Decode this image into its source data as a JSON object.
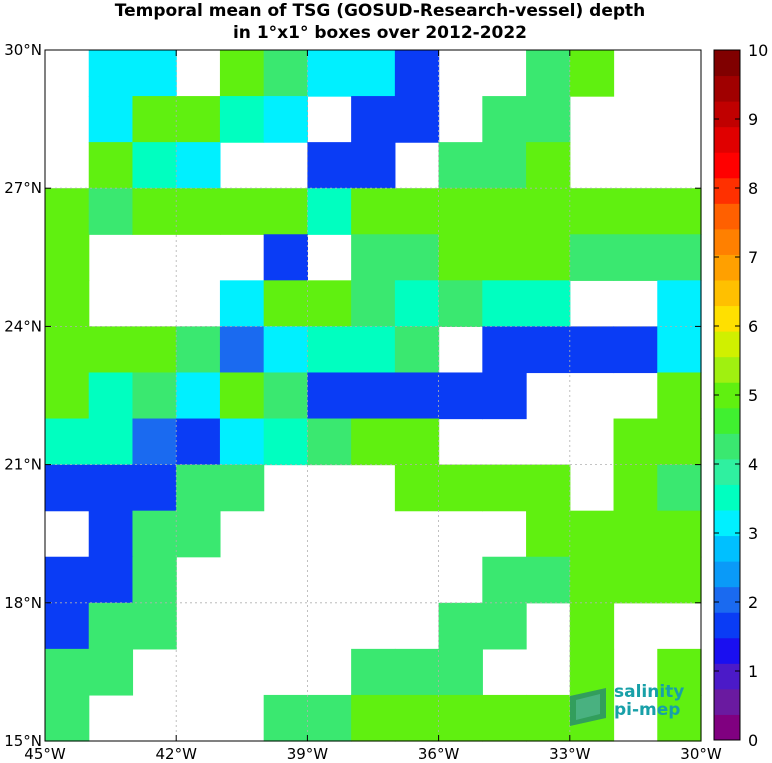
{
  "title": {
    "line1": "Temporal mean of TSG (GOSUD-Research-vessel) depth",
    "line2": "in 1°x1° boxes over 2012-2022"
  },
  "logo": {
    "line1": "salinity",
    "line2": "pi-mep"
  },
  "map": {
    "lon_range": [
      -45,
      -30
    ],
    "lat_range": [
      15,
      30
    ],
    "x_ticks": [
      "45°W",
      "42°W",
      "39°W",
      "36°W",
      "33°W",
      "30°W"
    ],
    "y_ticks": [
      "15°N",
      "18°N",
      "21°N",
      "24°N",
      "27°N",
      "30°N"
    ],
    "grid": true,
    "cell_values": [
      [
        null,
        3.0,
        3.0,
        null,
        5.0,
        4.2,
        3.0,
        3.0,
        1.7,
        null,
        null,
        4.2,
        5.0,
        null,
        null
      ],
      [
        null,
        3.0,
        5.0,
        5.0,
        3.6,
        3.0,
        null,
        1.7,
        1.7,
        null,
        4.2,
        4.2,
        null,
        null,
        null
      ],
      [
        null,
        5.0,
        3.6,
        3.0,
        null,
        null,
        1.7,
        1.7,
        null,
        4.2,
        4.2,
        5.0,
        null,
        null,
        null
      ],
      [
        5.0,
        4.2,
        5.0,
        5.0,
        5.0,
        5.0,
        3.6,
        5.0,
        5.0,
        5.0,
        5.0,
        5.0,
        5.0,
        5.0,
        5.0
      ],
      [
        5.0,
        null,
        null,
        null,
        null,
        1.7,
        null,
        4.2,
        4.2,
        5.0,
        5.0,
        5.0,
        4.2,
        4.2,
        4.2
      ],
      [
        5.0,
        null,
        null,
        null,
        3.0,
        5.0,
        5.0,
        4.2,
        3.6,
        4.2,
        3.6,
        3.6,
        null,
        null,
        3.0
      ],
      [
        5.0,
        5.0,
        5.0,
        4.2,
        2.0,
        3.0,
        3.6,
        3.6,
        4.2,
        null,
        1.7,
        1.7,
        1.7,
        1.7,
        3.0
      ],
      [
        5.0,
        3.6,
        4.2,
        3.0,
        5.0,
        4.2,
        1.7,
        1.7,
        1.7,
        1.7,
        1.7,
        null,
        null,
        null,
        5.0
      ],
      [
        3.6,
        3.6,
        2.0,
        1.7,
        3.0,
        3.6,
        4.2,
        5.0,
        5.0,
        null,
        null,
        null,
        null,
        5.0,
        5.0
      ],
      [
        1.7,
        1.7,
        1.7,
        4.2,
        4.2,
        null,
        null,
        null,
        5.0,
        5.0,
        5.0,
        5.0,
        null,
        5.0,
        4.2
      ],
      [
        null,
        1.7,
        4.2,
        4.2,
        null,
        null,
        null,
        null,
        null,
        null,
        null,
        5.0,
        5.0,
        5.0,
        5.0
      ],
      [
        1.7,
        1.7,
        4.2,
        null,
        null,
        null,
        null,
        null,
        null,
        null,
        4.2,
        4.2,
        5.0,
        5.0,
        5.0
      ],
      [
        1.7,
        4.2,
        4.2,
        null,
        null,
        null,
        null,
        null,
        null,
        4.2,
        4.2,
        null,
        5.0,
        null,
        null
      ],
      [
        4.2,
        4.2,
        null,
        null,
        null,
        null,
        null,
        4.2,
        4.2,
        4.2,
        null,
        null,
        5.0,
        null,
        5.0
      ],
      [
        4.2,
        null,
        null,
        null,
        null,
        4.2,
        4.2,
        5.0,
        5.0,
        5.0,
        5.0,
        5.0,
        5.0,
        null,
        5.0
      ]
    ]
  },
  "colorbar": {
    "min": 0,
    "max": 10,
    "tick_labels": [
      "0",
      "1",
      "2",
      "3",
      "4",
      "5",
      "6",
      "7",
      "8",
      "9",
      "10"
    ],
    "colors": [
      "#800080",
      "#6a1aa0",
      "#4b1ac8",
      "#1a0ff0",
      "#0a3cf5",
      "#1a6af0",
      "#0a9af8",
      "#00c0ff",
      "#00f0ff",
      "#00ffc0",
      "#2ff0a0",
      "#3ae870",
      "#40f030",
      "#60f010",
      "#a0f010",
      "#d0f000",
      "#ffe000",
      "#ffc000",
      "#ffa000",
      "#ff8000",
      "#ff6000",
      "#ff3000",
      "#ff0000",
      "#e00000",
      "#c00000",
      "#a00000",
      "#800000"
    ]
  }
}
